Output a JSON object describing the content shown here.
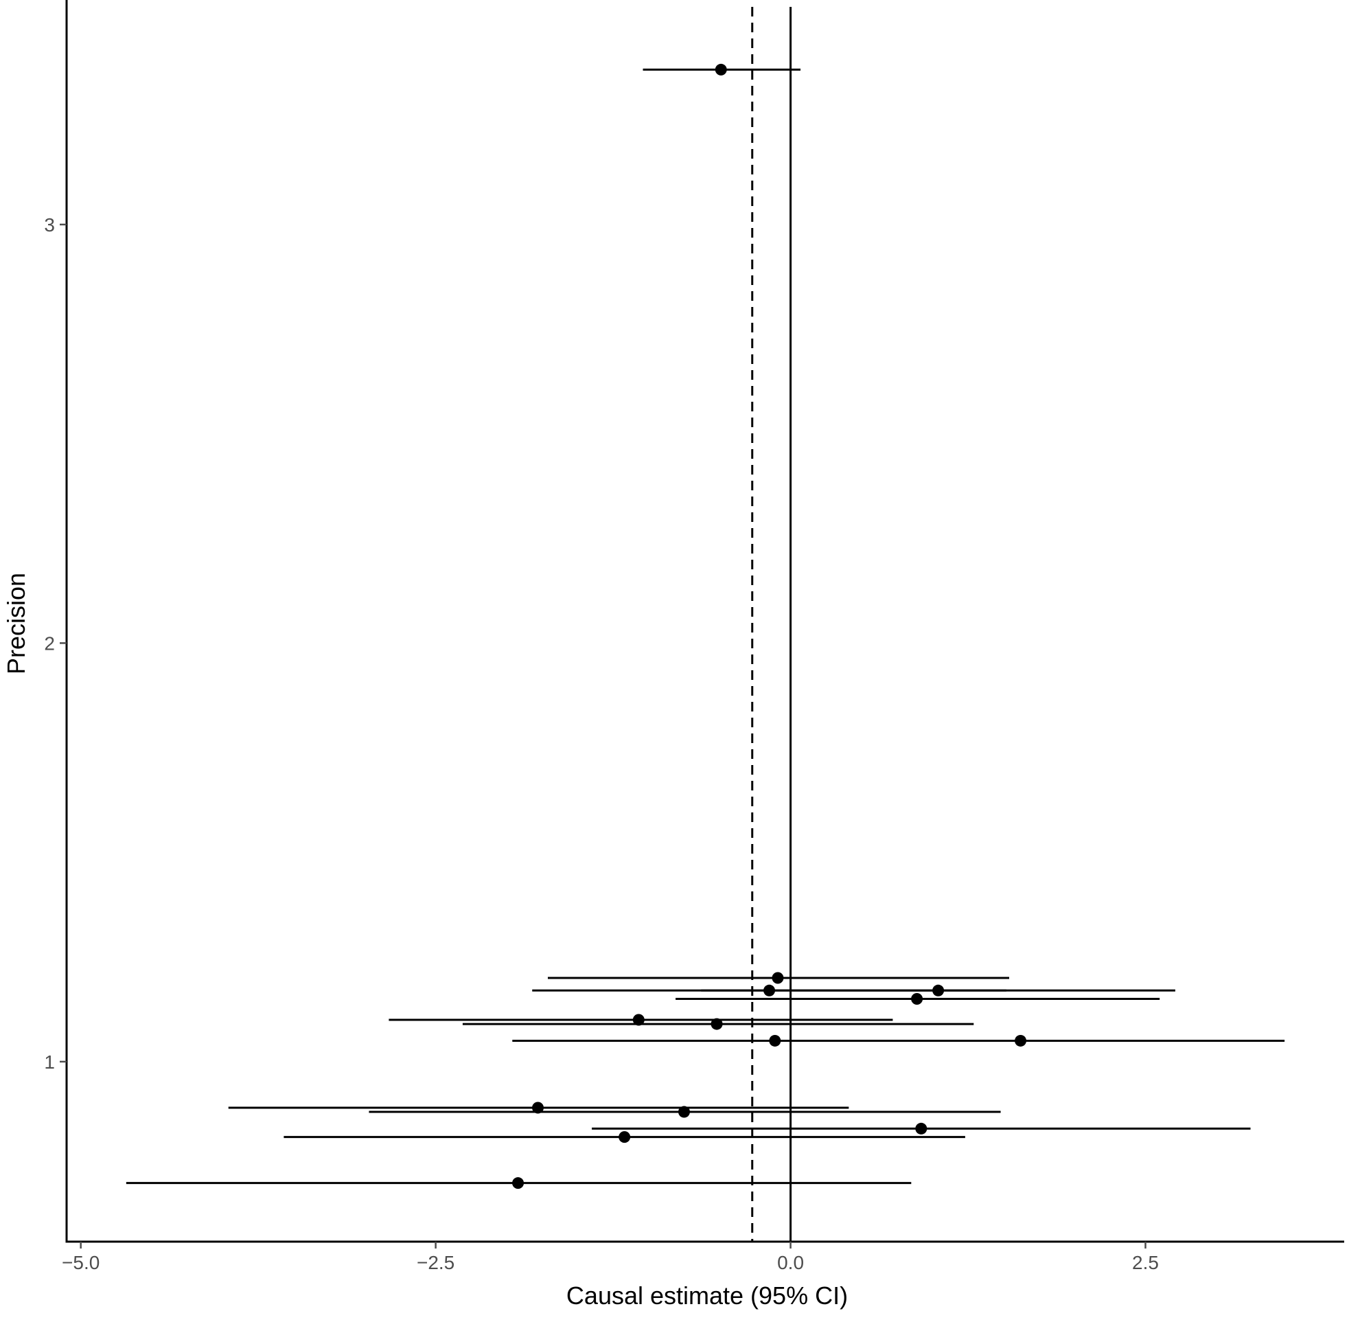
{
  "chart_data": {
    "type": "scatter",
    "subtype": "funnel-plot",
    "title": "",
    "xlabel": "Causal estimate (95% CI)",
    "ylabel": "Precision",
    "xlim": [
      -5.1,
      3.9
    ],
    "ylim": [
      0.57,
      3.52
    ],
    "x_ticks": [
      {
        "value": -5.0,
        "label": "−5.0"
      },
      {
        "value": -2.5,
        "label": "−2.5"
      },
      {
        "value": 0.0,
        "label": "0.0"
      },
      {
        "value": 2.5,
        "label": "2.5"
      }
    ],
    "y_ticks": [
      {
        "value": 1,
        "label": "1"
      },
      {
        "value": 2,
        "label": "2"
      },
      {
        "value": 3,
        "label": "3"
      }
    ],
    "grid": false,
    "legend": "none",
    "reference_lines": [
      {
        "name": "zero",
        "x": 0.0,
        "style": "solid"
      },
      {
        "name": "pooled estimate",
        "x": -0.27,
        "style": "dashed"
      }
    ],
    "points": [
      {
        "estimate": -0.49,
        "precision": 3.37,
        "ci_low": -1.04,
        "ci_high": 0.07
      },
      {
        "estimate": -0.09,
        "precision": 1.2,
        "ci_low": -1.71,
        "ci_high": 1.54
      },
      {
        "estimate": -0.15,
        "precision": 1.17,
        "ci_low": -1.82,
        "ci_high": 1.52
      },
      {
        "estimate": 1.04,
        "precision": 1.17,
        "ci_low": -0.63,
        "ci_high": 2.71
      },
      {
        "estimate": 0.89,
        "precision": 1.15,
        "ci_low": -0.81,
        "ci_high": 2.6
      },
      {
        "estimate": -1.07,
        "precision": 1.1,
        "ci_low": -2.83,
        "ci_high": 0.72
      },
      {
        "estimate": -0.52,
        "precision": 1.09,
        "ci_low": -2.31,
        "ci_high": 1.29
      },
      {
        "estimate": -0.11,
        "precision": 1.05,
        "ci_low": -1.96,
        "ci_high": 1.74
      },
      {
        "estimate": 1.62,
        "precision": 1.05,
        "ci_low": -0.22,
        "ci_high": 3.48
      },
      {
        "estimate": -1.78,
        "precision": 0.89,
        "ci_low": -3.96,
        "ci_high": 0.41
      },
      {
        "estimate": -0.75,
        "precision": 0.88,
        "ci_low": -2.97,
        "ci_high": 1.48
      },
      {
        "estimate": 0.92,
        "precision": 0.84,
        "ci_low": -1.4,
        "ci_high": 3.24
      },
      {
        "estimate": -1.17,
        "precision": 0.82,
        "ci_low": -3.57,
        "ci_high": 1.23
      },
      {
        "estimate": -1.92,
        "precision": 0.71,
        "ci_low": -4.68,
        "ci_high": 0.85
      }
    ],
    "colors": {
      "foreground": "#000000",
      "tick_label": "#4d4d4d",
      "background": "#ffffff"
    }
  }
}
